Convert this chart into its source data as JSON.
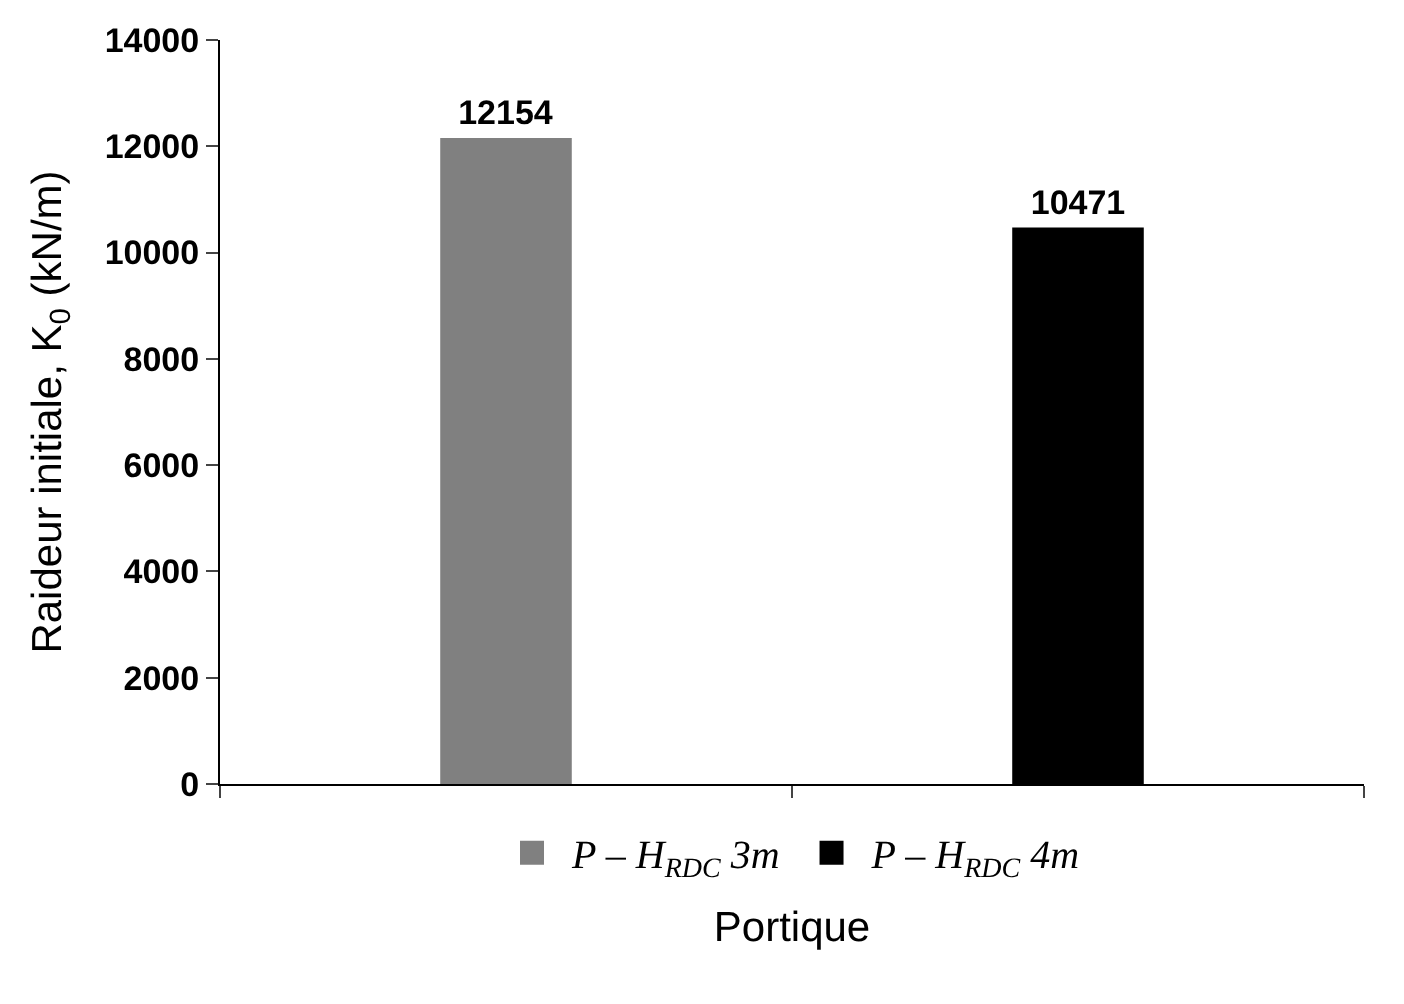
{
  "chart_data": {
    "type": "bar",
    "ylabel": "Raideur initiale, K$_{0}$ (kN/m)",
    "xlabel": "Portique",
    "categories": [
      null,
      null
    ],
    "series": [
      {
        "name": "P – H$_{RDC}$ 3m",
        "color": "#808080",
        "values": [
          12154,
          null
        ]
      },
      {
        "name": "P – H$_{RDC}$ 4m",
        "color": "#000000",
        "values": [
          null,
          10471
        ]
      }
    ],
    "ylim": [
      0,
      14000
    ],
    "yticks": [
      0,
      2000,
      4000,
      6000,
      8000,
      10000,
      12000,
      14000
    ],
    "data_labels": true,
    "legend": "bottom"
  }
}
